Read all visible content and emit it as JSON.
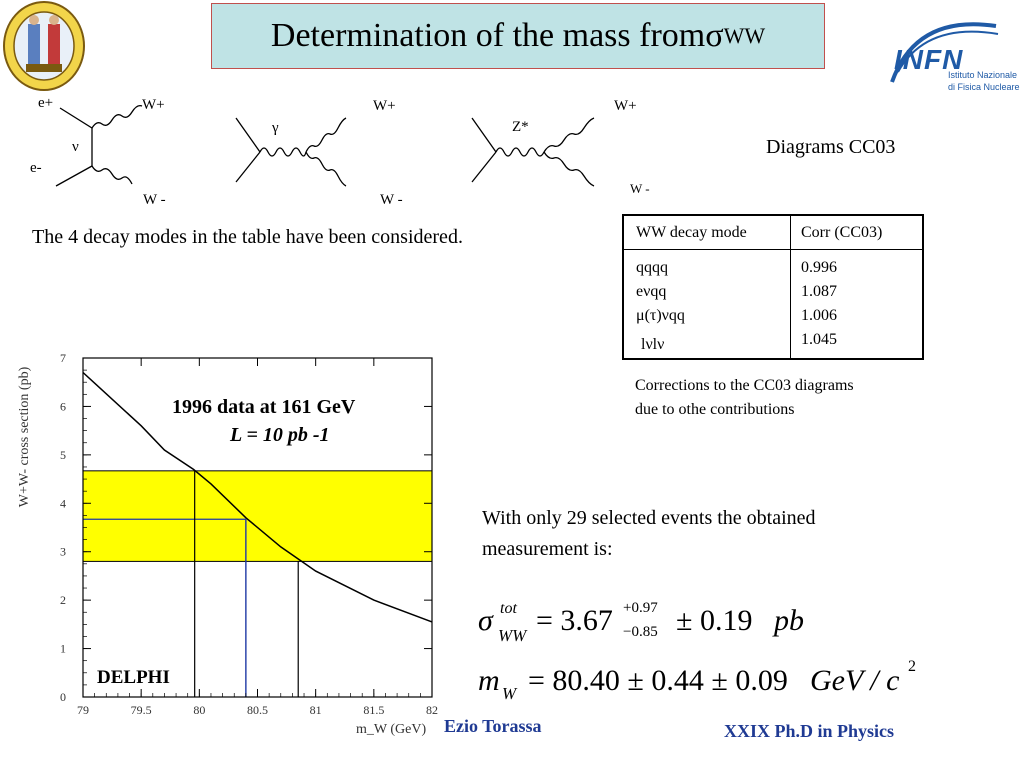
{
  "title": {
    "main": "Determination of the mass from ",
    "sigma": "σ",
    "sub": "WW"
  },
  "diagrams": {
    "caption": "Diagrams  CC03",
    "labels": {
      "eplus": "e+",
      "eminus": "e-",
      "nu": "ν",
      "gamma": "γ",
      "zstar": "Z*",
      "wplus": "W+",
      "wminus": "W -"
    }
  },
  "intro_text": "The 4 decay modes in the table have been considered.",
  "table": {
    "headers": [
      "WW decay mode",
      "Corr (CC03)"
    ],
    "rows": [
      {
        "mode": "qqqq",
        "corr": "0.996"
      },
      {
        "mode": "eνqq",
        "corr": "1.087"
      },
      {
        "mode": "μ(τ)νqq",
        "corr": "1.006"
      },
      {
        "mode": "lνlν",
        "corr": "1.045"
      }
    ]
  },
  "table_caption": {
    "line1": "Corrections to the CC03 diagrams",
    "line2": "due to othe contributions"
  },
  "measurement_text": {
    "line1": "With only 29 selected events the obtained",
    "line2": "measurement is:"
  },
  "formula1": {
    "symbol": "σ",
    "sup": "tot",
    "sub": "WW",
    "value": "= 3.67",
    "err_up": "+0.97",
    "err_down": "−0.85",
    "syst": "± 0.19",
    "unit": "pb"
  },
  "formula2": {
    "symbol": "m",
    "sub": "W",
    "text": "= 80.40 ± 0.44 ± 0.09",
    "unit": "GeV / c",
    "unit_sup": "2"
  },
  "footer": {
    "author": "Ezio Torassa",
    "course": "XXIX  Ph.D in Physics"
  },
  "logos": {
    "infn_name": "INFN",
    "infn_line1": "Istituto Nazionale",
    "infn_line2": "di Fisica Nucleare"
  },
  "chart_data": {
    "type": "line",
    "title": "1996 data at 161 GeV",
    "subtitle": "L = 10 pb -1",
    "experiment": "DELPHI",
    "xlabel": "m_W (GeV)",
    "ylabel": "W+W- cross section (pb)",
    "xlim": [
      79,
      82
    ],
    "ylim": [
      0,
      7
    ],
    "xticks": [
      "79",
      "79.5",
      "80",
      "80.5",
      "81",
      "81.5",
      "82"
    ],
    "yticks": [
      "0",
      "1",
      "2",
      "3",
      "4",
      "5",
      "6",
      "7"
    ],
    "curve": {
      "x": [
        79.0,
        79.5,
        79.7,
        79.95,
        80.1,
        80.4,
        80.7,
        81.0,
        81.5,
        82.0
      ],
      "y": [
        6.7,
        5.6,
        5.1,
        4.7,
        4.4,
        3.7,
        3.1,
        2.6,
        2.0,
        1.55
      ]
    },
    "band": {
      "low": 2.8,
      "central": 3.67,
      "high": 4.67,
      "color": "#ffff00"
    },
    "mass_lines": {
      "low": 79.96,
      "central": 80.4,
      "high": 80.85
    },
    "central_color": "#1f3aa6"
  }
}
